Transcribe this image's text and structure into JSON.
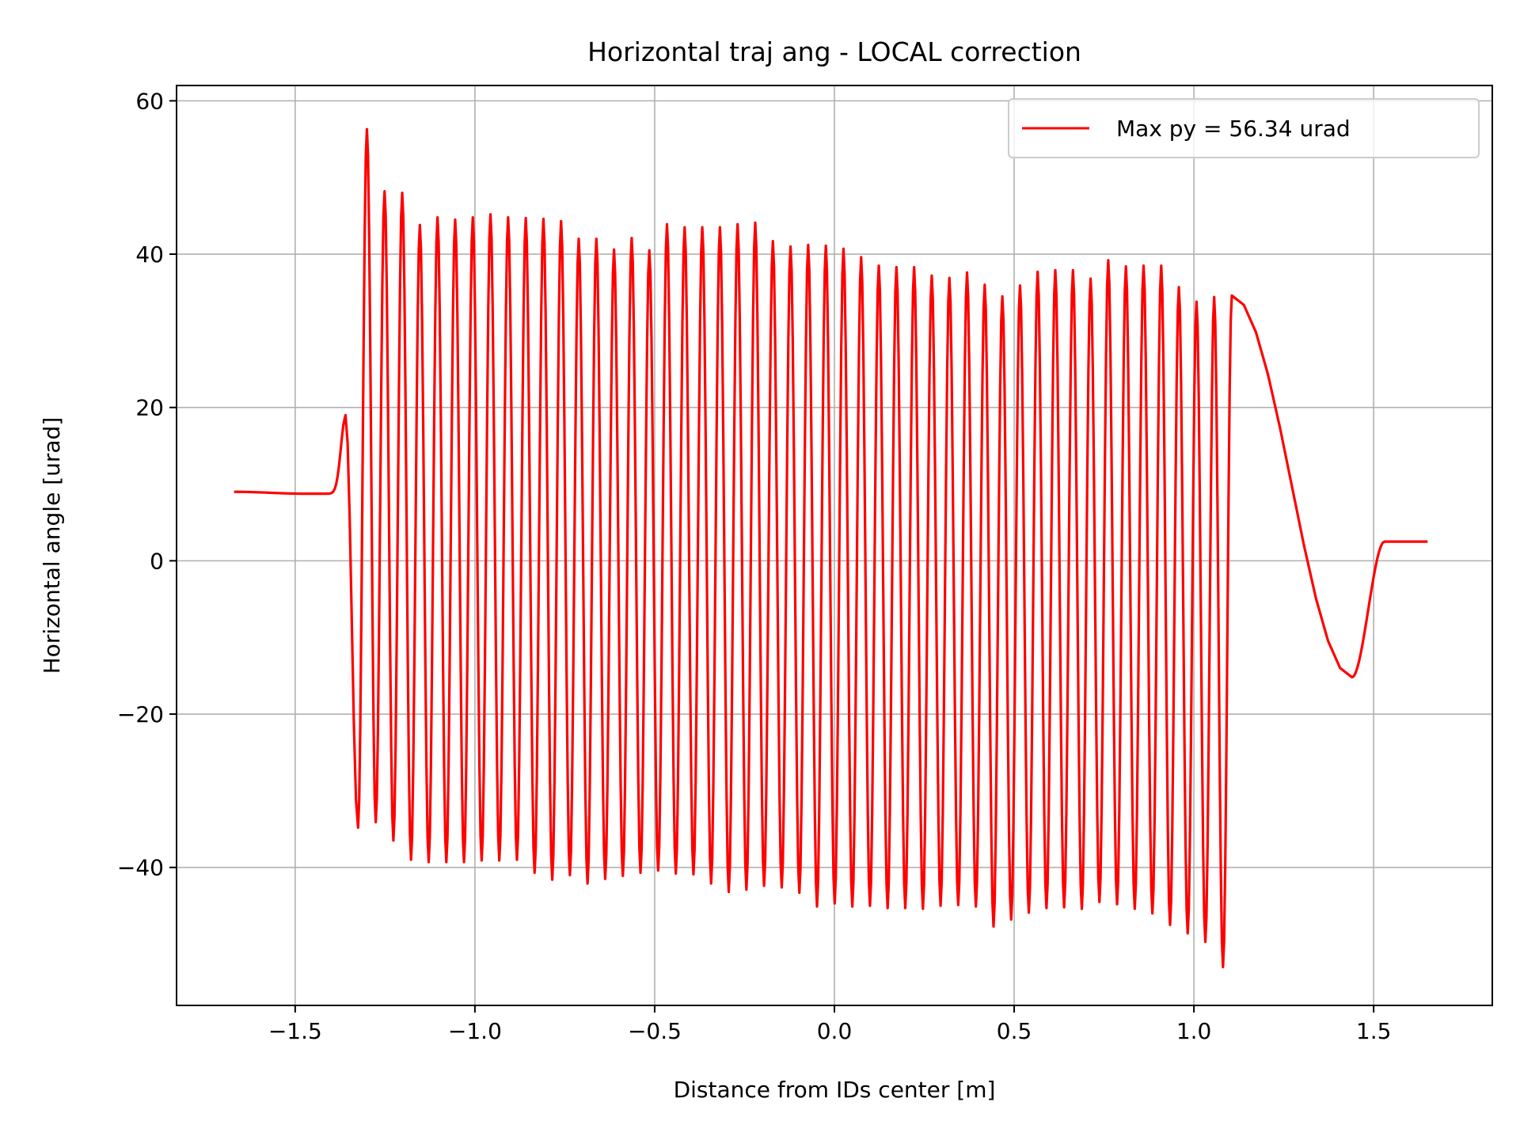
{
  "chart_data": {
    "type": "line",
    "title": "Horizontal traj ang - LOCAL correction",
    "xlabel": "Distance from IDs center [m]",
    "ylabel": "Horizontal angle [urad]",
    "xlim": [
      -1.83,
      1.83
    ],
    "ylim": [
      -58,
      62
    ],
    "xticks": [
      -1.5,
      -1.0,
      -0.5,
      0.0,
      0.5,
      1.0,
      1.5
    ],
    "xtick_labels": [
      "−1.5",
      "−1.0",
      "−0.5",
      "0.0",
      "0.5",
      "1.0",
      "1.5"
    ],
    "yticks": [
      -40,
      -20,
      0,
      20,
      40,
      60
    ],
    "ytick_labels": [
      "−40",
      "−20",
      "0",
      "20",
      "40",
      "60"
    ],
    "grid": true,
    "legend_position": "top-right",
    "series": [
      {
        "name": "Max py = 56.34 urad",
        "color": "#ff0000",
        "x_start": -1.67,
        "x_end": 1.65,
        "entry_level": 9.0,
        "exit_level": 2.5,
        "entry_bump": {
          "x": -1.36,
          "y": 19.0
        },
        "exit_dip": {
          "x": 1.44,
          "y": -15.2
        },
        "oscillation_start": -1.325,
        "oscillation_period": 0.0491,
        "max_value": 56.34,
        "peaks": [
          56.3,
          48.2,
          48.0,
          43.8,
          44.8,
          44.5,
          44.8,
          45.2,
          44.8,
          44.7,
          44.6,
          44.3,
          42.0,
          42.0,
          40.6,
          42.1,
          40.5,
          43.9,
          43.5,
          43.5,
          43.5,
          43.9,
          44.1,
          41.7,
          41.0,
          41.2,
          41.1,
          40.7,
          39.6,
          38.5,
          38.3,
          38.3,
          37.2,
          36.9,
          37.6,
          36.0,
          34.5,
          35.9,
          37.7,
          37.9,
          37.9,
          36.8,
          39.2,
          38.4,
          38.5,
          38.5,
          35.7,
          33.8,
          34.4,
          34.6,
          36.1
        ],
        "troughs": [
          -34.8,
          -34.1,
          -36.5,
          -39.0,
          -39.3,
          -39.3,
          -39.3,
          -39.1,
          -39.1,
          -39.0,
          -40.7,
          -41.6,
          -41.0,
          -42.1,
          -41.5,
          -41.1,
          -40.7,
          -40.4,
          -40.8,
          -40.9,
          -42.1,
          -43.2,
          -42.9,
          -42.4,
          -42.6,
          -43.3,
          -45.1,
          -44.7,
          -45.1,
          -45.0,
          -45.3,
          -45.3,
          -45.4,
          -45.0,
          -44.9,
          -45.1,
          -47.7,
          -46.8,
          -45.9,
          -45.3,
          -45.2,
          -45.4,
          -44.5,
          -44.8,
          -45.4,
          -46.0,
          -47.5,
          -48.6,
          -49.7,
          -53.0
        ]
      }
    ]
  }
}
